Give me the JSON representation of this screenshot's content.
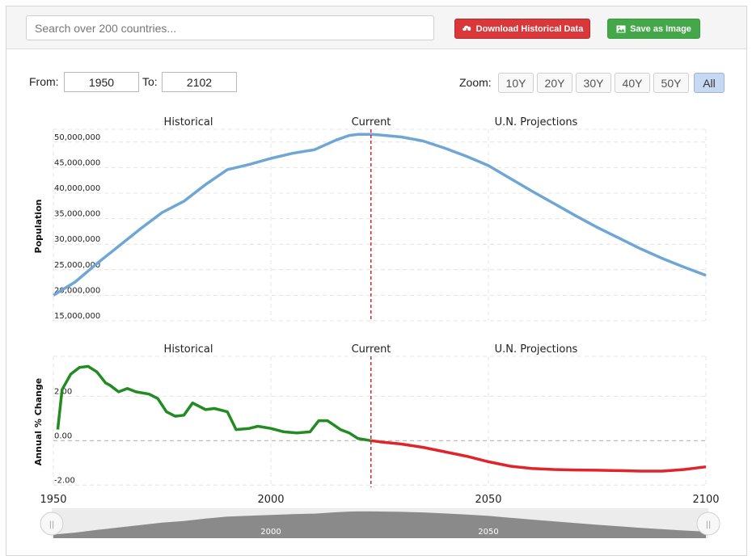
{
  "toolbar": {
    "search_placeholder": "Search over 200 countries...",
    "download_label": "Download Historical Data",
    "save_label": "Save as Image"
  },
  "range": {
    "from_label": "From:",
    "from_value": "1950",
    "to_label": "To:",
    "to_value": "2102"
  },
  "zoom": {
    "label": "Zoom:",
    "options": [
      "10Y",
      "20Y",
      "30Y",
      "40Y",
      "50Y",
      "All"
    ],
    "active": "All"
  },
  "colors": {
    "population_line": "#6fa6d3",
    "growth_historical": "#228b22",
    "growth_projected": "#e0242a",
    "current_marker": "#c8282e",
    "navigator_fill": "#8a8a8a"
  },
  "chart_data": [
    {
      "type": "line",
      "ylabel": "Population",
      "section_labels": [
        "Historical",
        "Current",
        "U.N. Projections"
      ],
      "current_year": 2023,
      "xlim": [
        1950,
        2100
      ],
      "ylim": [
        15000000,
        52500000
      ],
      "yticks": [
        15000000,
        20000000,
        25000000,
        30000000,
        35000000,
        40000000,
        45000000,
        50000000
      ],
      "ytick_labels": [
        "15,000,000",
        "20,000,000",
        "25,000,000",
        "30,000,000",
        "35,000,000",
        "40,000,000",
        "45,000,000",
        "50,000,000"
      ],
      "series": [
        {
          "x": [
            1950,
            1955,
            1960,
            1965,
            1970,
            1975,
            1980,
            1985,
            1990,
            1995,
            2000,
            2005,
            2010,
            2015,
            2018,
            2020,
            2023,
            2025,
            2030,
            2035,
            2040,
            2045,
            2050,
            2055,
            2060,
            2065,
            2070,
            2075,
            2080,
            2085,
            2090,
            2095,
            2100
          ],
          "y": [
            20000000,
            22600000,
            26200000,
            29600000,
            33000000,
            36200000,
            38400000,
            41700000,
            44600000,
            45600000,
            46800000,
            47800000,
            48500000,
            50400000,
            51300000,
            51500000,
            51500000,
            51400000,
            51000000,
            50200000,
            48800000,
            47200000,
            45400000,
            42900000,
            40400000,
            38000000,
            35600000,
            33300000,
            31200000,
            29100000,
            27200000,
            25500000,
            23900000
          ]
        }
      ]
    },
    {
      "type": "line",
      "ylabel": "Annual % Change",
      "section_labels": [
        "Historical",
        "Current",
        "U.N. Projections"
      ],
      "current_year": 2023,
      "xlim": [
        1950,
        2100
      ],
      "ylim": [
        -2.1,
        3.8
      ],
      "yticks": [
        -2,
        0,
        2
      ],
      "ytick_labels": [
        "-2.00",
        "0.00",
        "2.00"
      ],
      "xtick_labels": [
        "1950",
        "2000",
        "2050",
        "2100"
      ],
      "series": [
        {
          "segment": "historical",
          "x": [
            1951,
            1952,
            1954,
            1956,
            1958,
            1960,
            1962,
            1963,
            1965,
            1967,
            1969,
            1972,
            1974,
            1976,
            1978,
            1980,
            1982,
            1985,
            1987,
            1990,
            1992,
            1995,
            1997,
            2000,
            2003,
            2006,
            2009,
            2011,
            2013,
            2016,
            2018,
            2020,
            2023
          ],
          "y": [
            0.5,
            2.3,
            3.0,
            3.3,
            3.35,
            3.1,
            2.6,
            2.5,
            2.2,
            2.35,
            2.2,
            2.1,
            1.9,
            1.3,
            1.1,
            1.15,
            1.7,
            1.4,
            1.45,
            1.3,
            0.5,
            0.55,
            0.65,
            0.55,
            0.4,
            0.35,
            0.4,
            0.9,
            0.9,
            0.5,
            0.35,
            0.1,
            0.0
          ]
        },
        {
          "segment": "projected",
          "x": [
            2023,
            2025,
            2030,
            2035,
            2040,
            2045,
            2050,
            2055,
            2060,
            2065,
            2070,
            2075,
            2080,
            2085,
            2090,
            2095,
            2100
          ],
          "y": [
            0.0,
            -0.05,
            -0.15,
            -0.3,
            -0.5,
            -0.7,
            -0.95,
            -1.15,
            -1.25,
            -1.3,
            -1.32,
            -1.33,
            -1.35,
            -1.37,
            -1.37,
            -1.3,
            -1.18
          ]
        }
      ]
    }
  ],
  "navigator": {
    "labels": [
      "2000",
      "2050"
    ],
    "left_handle": "||",
    "right_handle": "||"
  }
}
